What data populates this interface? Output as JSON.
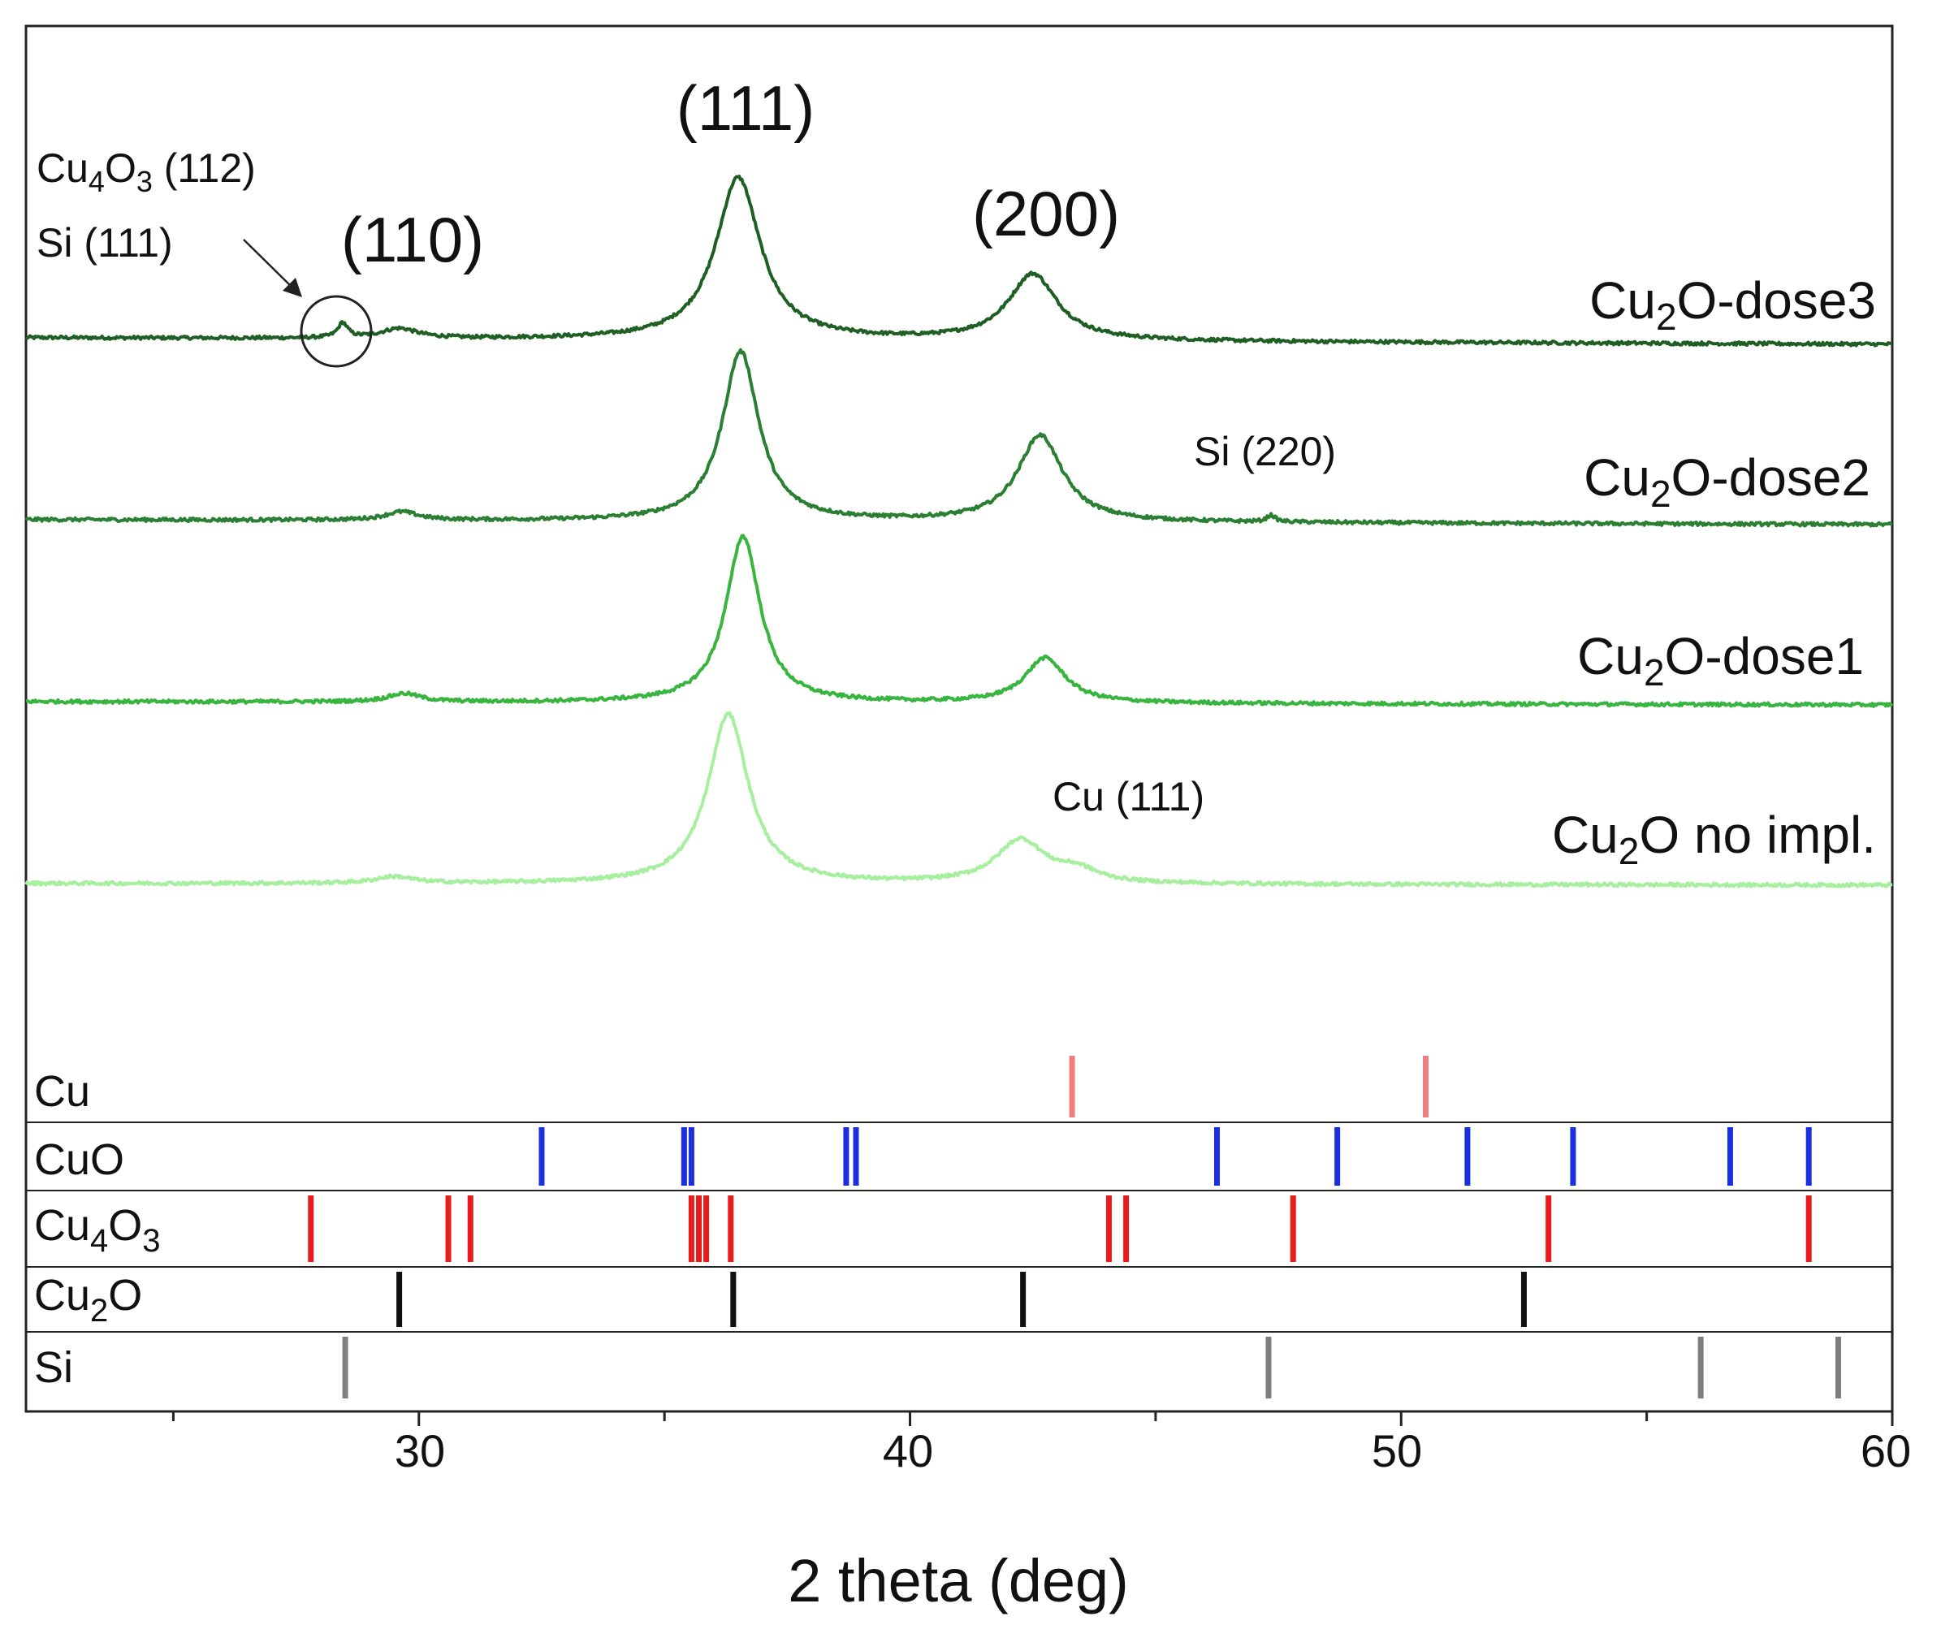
{
  "chart_data": {
    "type": "line",
    "title": "",
    "xlabel": "2 theta (deg)",
    "ylabel": "",
    "xlim": [
      22,
      60
    ],
    "x_ticks": [
      "30",
      "40",
      "50",
      "60"
    ],
    "series": [
      {
        "name": "Cu2O-dose3",
        "name_main": "Cu",
        "name_sub": "2",
        "name_rest": "O-dose3",
        "color": "#1f5f24",
        "peaks": [
          {
            "pos": 28.45,
            "height": 0.09,
            "width": 0.12
          },
          {
            "pos": 29.6,
            "height": 0.06,
            "width": 0.45
          },
          {
            "pos": 36.5,
            "height": 1.0,
            "width": 0.55
          },
          {
            "pos": 42.5,
            "height": 0.41,
            "width": 0.6
          }
        ]
      },
      {
        "name": "Cu2O-dose2",
        "name_main": "Cu",
        "name_sub": "2",
        "name_rest": "O-dose2",
        "color": "#2a7f32",
        "peaks": [
          {
            "pos": 29.65,
            "height": 0.05,
            "width": 0.4
          },
          {
            "pos": 36.55,
            "height": 1.02,
            "width": 0.45
          },
          {
            "pos": 42.65,
            "height": 0.52,
            "width": 0.55
          },
          {
            "pos": 47.35,
            "height": 0.04,
            "width": 0.1
          }
        ]
      },
      {
        "name": "Cu2O-dose1",
        "name_main": "Cu",
        "name_sub": "2",
        "name_rest": "O-dose1",
        "color": "#38b53f",
        "peaks": [
          {
            "pos": 29.7,
            "height": 0.05,
            "width": 0.4
          },
          {
            "pos": 36.6,
            "height": 1.0,
            "width": 0.42
          },
          {
            "pos": 42.75,
            "height": 0.27,
            "width": 0.5
          }
        ]
      },
      {
        "name": "Cu2O no impl.",
        "name_main": "Cu",
        "name_sub": "2",
        "name_rest": "O no impl.",
        "color": "#a6ef9e",
        "peaks": [
          {
            "pos": 29.5,
            "height": 0.04,
            "width": 0.45
          },
          {
            "pos": 36.3,
            "height": 1.02,
            "width": 0.5
          },
          {
            "pos": 42.25,
            "height": 0.26,
            "width": 0.6
          },
          {
            "pos": 43.4,
            "height": 0.07,
            "width": 0.5
          }
        ]
      }
    ],
    "reference_patterns": [
      {
        "label_main": "Cu",
        "label_sub": "",
        "label_rest": "",
        "label_sub2": "",
        "color": "#f07c7c",
        "positions": [
          43.3,
          50.5
        ]
      },
      {
        "label_main": "CuO",
        "label_sub": "",
        "label_rest": "",
        "label_sub2": "",
        "color": "#1c2fe0",
        "positions": [
          32.5,
          35.4,
          35.55,
          38.7,
          38.9,
          46.25,
          48.7,
          51.35,
          53.5,
          56.7,
          58.3
        ]
      },
      {
        "label_main": "Cu",
        "label_sub": "4",
        "label_rest": "O",
        "label_sub2": "3",
        "color": "#e81c1c",
        "positions": [
          27.8,
          30.6,
          31.05,
          35.55,
          35.7,
          35.85,
          36.35,
          44.05,
          44.4,
          47.8,
          53.0,
          58.3
        ]
      },
      {
        "label_main": "Cu",
        "label_sub": "2",
        "label_rest": "O",
        "label_sub2": "",
        "color": "#111111",
        "positions": [
          29.6,
          36.4,
          42.3,
          52.5
        ]
      },
      {
        "label_main": "Si",
        "label_sub": "",
        "label_rest": "",
        "label_sub2": "",
        "color": "#7f7f7f",
        "positions": [
          28.5,
          47.3,
          56.1,
          58.9
        ]
      }
    ],
    "annotations": {
      "hkl_110": "(110)",
      "hkl_111": "(111)",
      "hkl_200": "(200)",
      "cu4o3_main": "Cu",
      "cu4o3_sub1": "4",
      "cu4o3_mid": "O",
      "cu4o3_sub2": "3",
      "cu4o3_rest": " (112)",
      "si111": "Si (111)",
      "si220": "Si (220)",
      "cu111": "Cu (111)"
    }
  }
}
